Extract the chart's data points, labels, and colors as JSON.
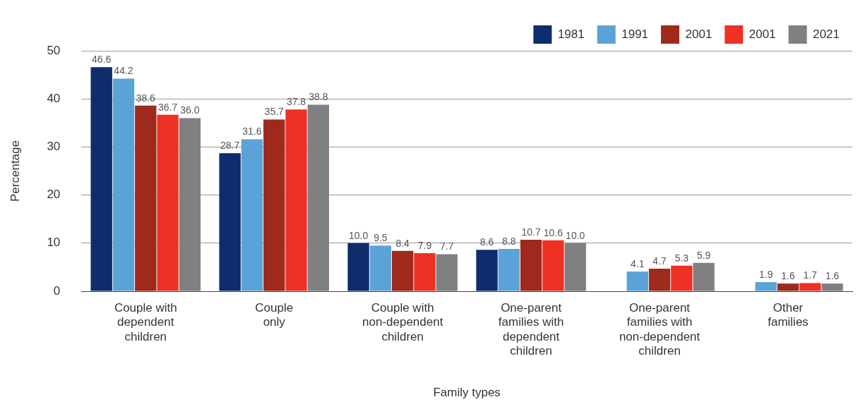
{
  "chart_data": {
    "type": "bar",
    "xlabel": "Family types",
    "ylabel": "Percentage",
    "categories": [
      "Couple with\ndependent\nchildren",
      "Couple\nonly",
      "Couple with\nnon-dependent\nchildren",
      "One-parent\nfamilies with\ndependent\nchildren",
      "One-parent\nfamilies with\nnon-dependent\nchildren",
      "Other\nfamilies"
    ],
    "series": [
      {
        "name": "1981",
        "color": "#0d2d6c",
        "values": [
          46.6,
          28.7,
          10.0,
          8.6,
          null,
          null
        ],
        "value_labels": [
          "46.6",
          "28.7",
          "10.0",
          "8.6",
          null,
          null
        ]
      },
      {
        "name": "1991",
        "color": "#5ba3d6",
        "values": [
          44.2,
          31.6,
          9.5,
          8.8,
          4.1,
          1.9
        ],
        "value_labels": [
          "44.2",
          "31.6",
          "9.5",
          "8.8",
          "4.1",
          "1.9"
        ]
      },
      {
        "name": "2001",
        "color": "#9e2a1e",
        "values": [
          38.6,
          35.7,
          8.4,
          10.7,
          4.7,
          1.6
        ],
        "value_labels": [
          "38.6",
          "35.7",
          "8.4",
          "10.7",
          "4.7",
          "1.6"
        ]
      },
      {
        "name": "2001",
        "color": "#ee3124",
        "values": [
          36.7,
          37.8,
          7.9,
          10.6,
          5.3,
          1.7
        ],
        "value_labels": [
          "36.7",
          "37.8",
          "7.9",
          "10.6",
          "5.3",
          "1.7"
        ]
      },
      {
        "name": "2021",
        "color": "#808083",
        "values": [
          36.0,
          38.8,
          7.7,
          10.0,
          5.9,
          1.6
        ],
        "value_labels": [
          "36.0",
          "38.8",
          "7.7",
          "10.0",
          "5.9",
          "1.6"
        ]
      }
    ],
    "ylim": [
      0,
      50
    ],
    "yticks": [
      0,
      10,
      20,
      30,
      40,
      50
    ],
    "grid": "y",
    "legend": "top right"
  }
}
